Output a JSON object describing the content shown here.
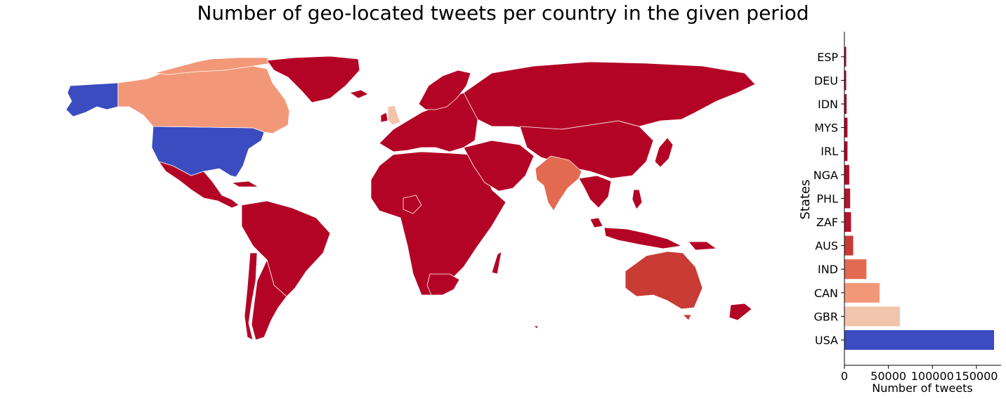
{
  "title": "Number of geo-located tweets per country in the given period",
  "colors": {
    "USA": "#3b4cc0",
    "GBR": "#f2c4ac",
    "CAN": "#f29878",
    "IND": "#e26a50",
    "AUS": "#c83c35",
    "low": "#b40426",
    "border": "#ffffff"
  },
  "chart_data": [
    {
      "type": "choropleth",
      "title": "Number of geo-located tweets per country in the given period",
      "countries": [
        {
          "code": "USA",
          "value": 170000
        },
        {
          "code": "GBR",
          "value": 63000
        },
        {
          "code": "CAN",
          "value": 40000
        },
        {
          "code": "IND",
          "value": 25000
        },
        {
          "code": "AUS",
          "value": 10000
        },
        {
          "code": "ZAF",
          "value": 7500
        },
        {
          "code": "PHL",
          "value": 6500
        },
        {
          "code": "NGA",
          "value": 5500
        },
        {
          "code": "IRL",
          "value": 3500
        },
        {
          "code": "MYS",
          "value": 3500
        },
        {
          "code": "IDN",
          "value": 2500
        },
        {
          "code": "DEU",
          "value": 2000
        },
        {
          "code": "ESP",
          "value": 2000
        }
      ]
    },
    {
      "type": "bar",
      "orientation": "horizontal",
      "categories": [
        "USA",
        "GBR",
        "CAN",
        "IND",
        "AUS",
        "ZAF",
        "PHL",
        "NGA",
        "IRL",
        "MYS",
        "IDN",
        "DEU",
        "ESP"
      ],
      "values": [
        170000,
        63000,
        40000,
        25000,
        10000,
        7500,
        6500,
        5500,
        3500,
        3500,
        2500,
        2000,
        2000
      ],
      "bar_colors": [
        "#3b4cc0",
        "#f2c4ac",
        "#f29878",
        "#e26a50",
        "#c83c35",
        "#b8122a",
        "#b8122a",
        "#b40e29",
        "#b40426",
        "#b40426",
        "#b40426",
        "#b40426",
        "#b40426"
      ],
      "xlabel": "Number of tweets",
      "ylabel": "States",
      "xticks": [
        0,
        50000,
        100000,
        150000
      ],
      "xlim": [
        0,
        178000
      ],
      "grid": false
    }
  ]
}
